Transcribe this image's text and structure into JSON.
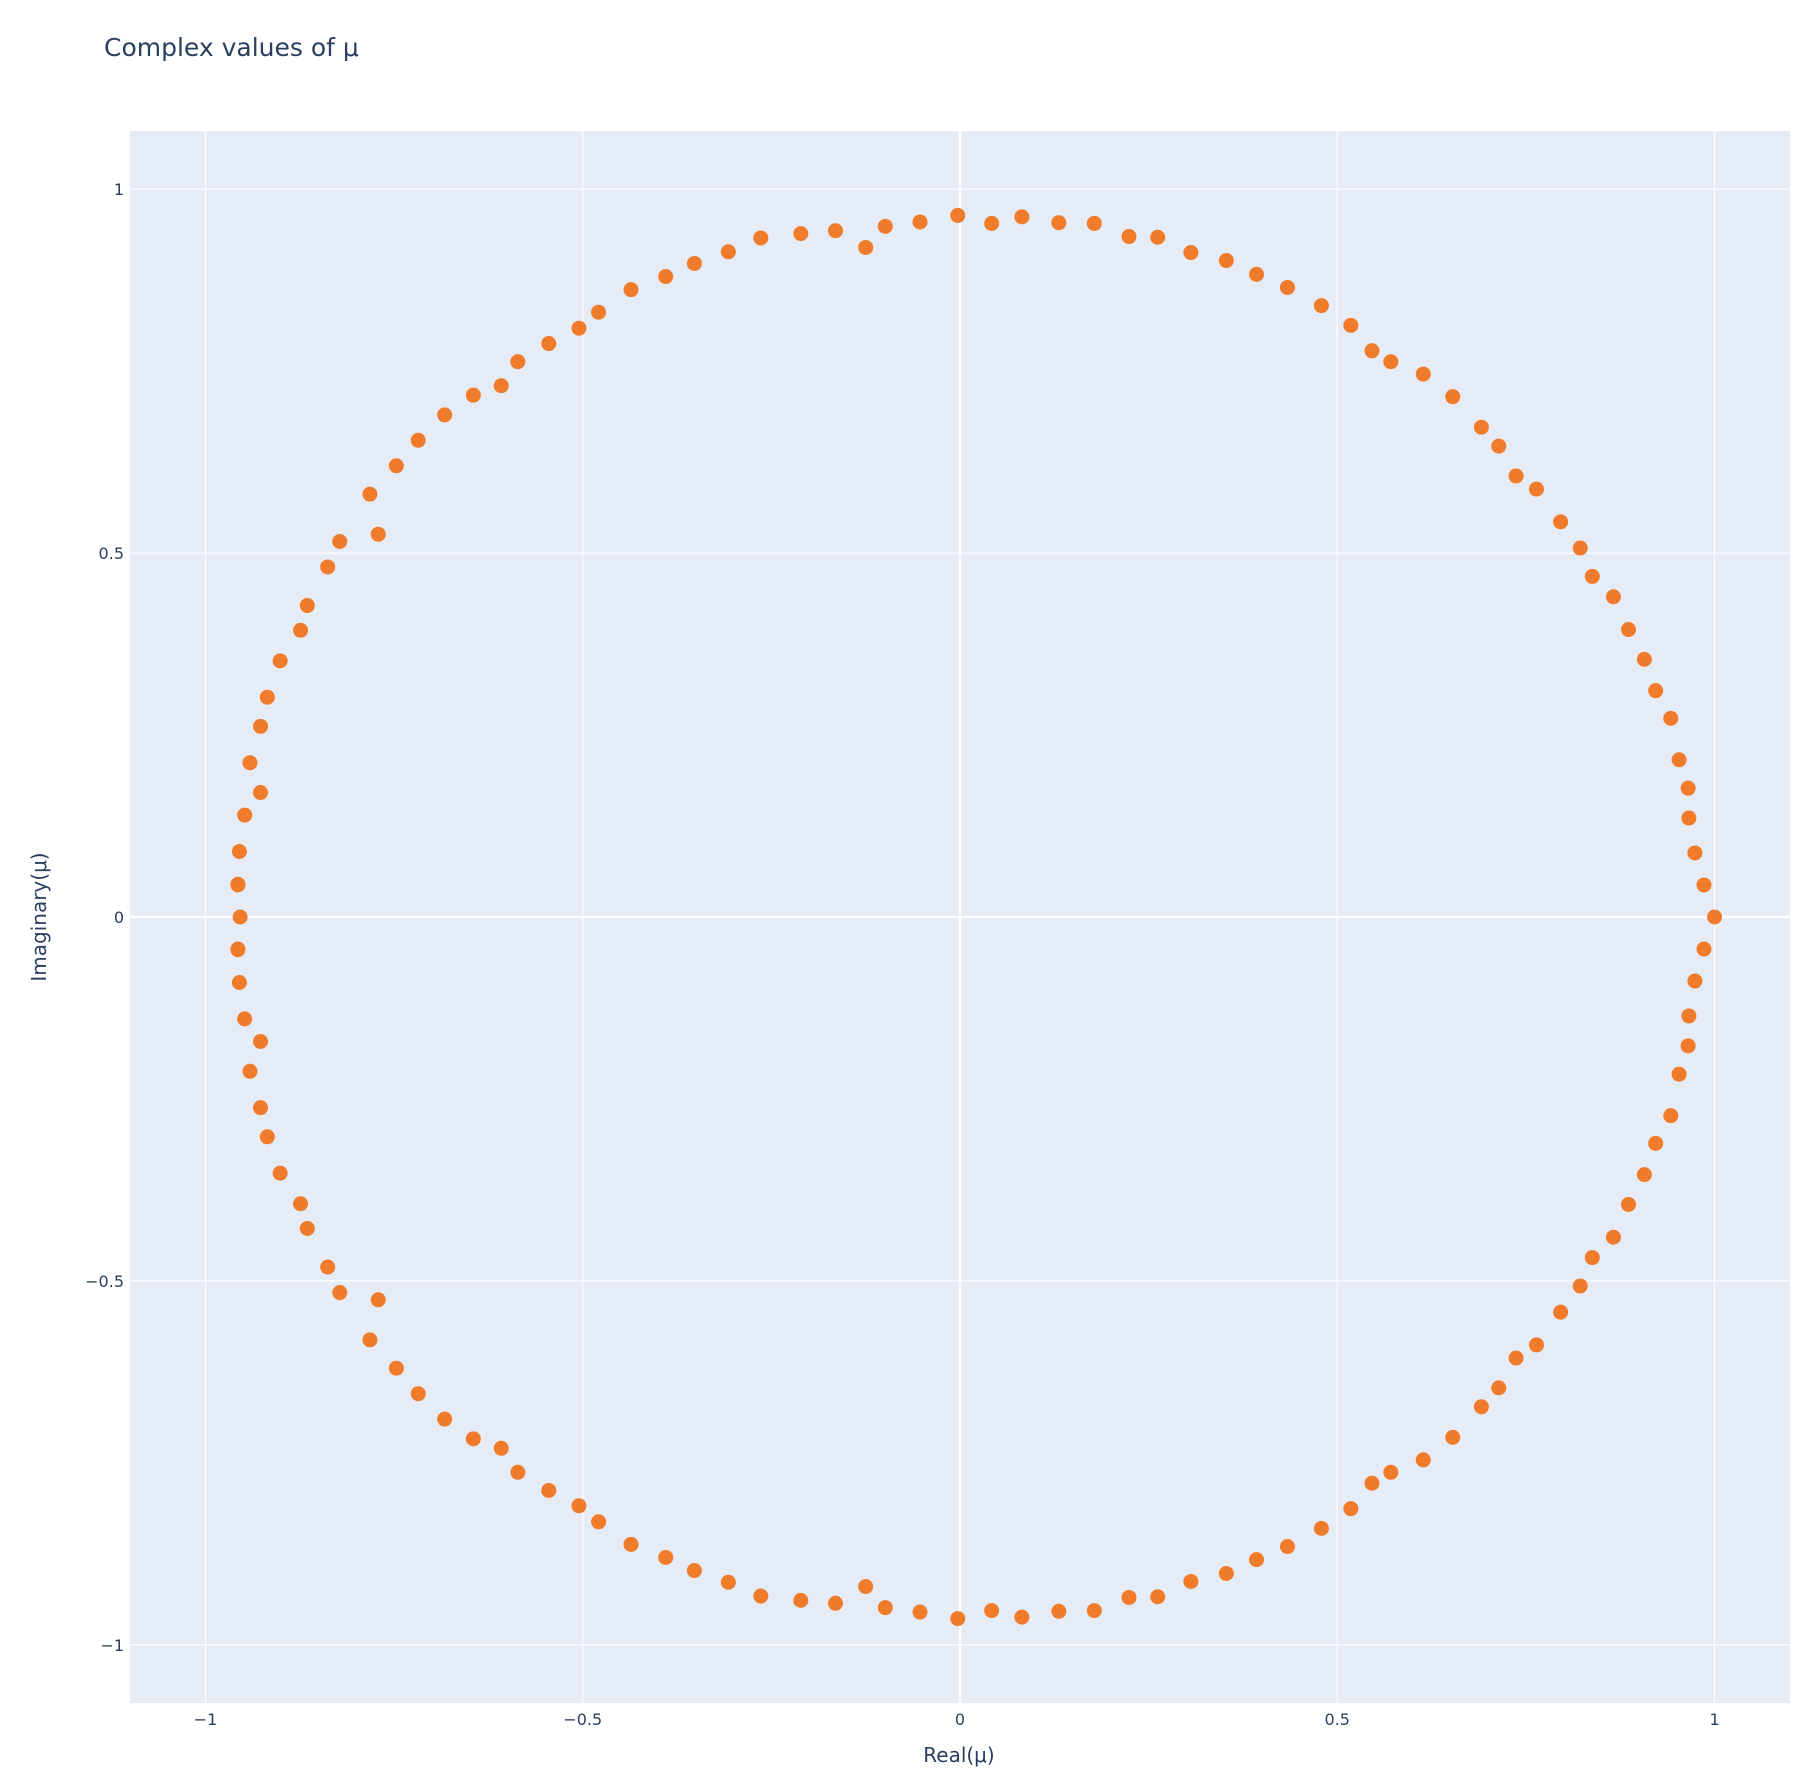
{
  "chart_data": {
    "type": "scatter",
    "title": "Complex values of μ",
    "xlabel": "Real(μ)",
    "ylabel": "Imaginary(μ)",
    "xlim": [
      -1.1,
      1.1
    ],
    "ylim": [
      -1.08,
      1.08
    ],
    "xticks": [
      -1,
      -0.5,
      0,
      0.5,
      1
    ],
    "yticks": [
      -1,
      -0.5,
      0,
      0.5,
      1
    ],
    "xtick_labels": [
      "−1",
      "−0.5",
      "0",
      "0.5",
      "1"
    ],
    "ytick_labels": [
      "−1",
      "−0.5",
      "0",
      "0.5",
      "1"
    ],
    "grid": true,
    "marker_color": "#ef7b2b",
    "plot_background": "#e5ecf6",
    "series": [
      {
        "x": [
          1.0,
          0.986,
          0.974,
          0.966,
          0.965,
          0.953,
          0.942,
          0.922,
          0.907,
          0.886,
          0.866,
          0.838,
          0.822,
          0.796,
          0.764,
          0.737,
          0.714,
          0.691,
          0.653,
          0.614,
          0.571,
          0.546,
          0.518,
          0.479,
          0.434,
          0.393,
          0.353,
          0.306,
          0.262,
          0.224,
          0.178,
          0.131,
          0.082,
          0.042,
          -0.003,
          -0.053,
          -0.099,
          -0.125,
          -0.165,
          -0.211,
          -0.264,
          -0.307,
          -0.352,
          -0.39,
          -0.436,
          -0.479,
          -0.505,
          -0.545,
          -0.586,
          -0.608,
          -0.645,
          -0.683,
          -0.718,
          -0.747,
          -0.782,
          -0.771,
          -0.822,
          -0.838,
          -0.865,
          -0.874,
          -0.901,
          -0.918,
          -0.927,
          -0.927,
          -0.941,
          -0.948,
          -0.955,
          -0.957,
          -0.954,
          -0.957
        ],
        "y": [
          0.0,
          0.044,
          0.088,
          0.136,
          0.177,
          0.216,
          0.273,
          0.311,
          0.354,
          0.395,
          0.44,
          0.468,
          0.507,
          0.543,
          0.588,
          0.606,
          0.647,
          0.673,
          0.715,
          0.746,
          0.763,
          0.778,
          0.813,
          0.84,
          0.865,
          0.883,
          0.902,
          0.913,
          0.934,
          0.935,
          0.953,
          0.954,
          0.962,
          0.953,
          0.964,
          0.955,
          0.949,
          0.92,
          0.943,
          0.939,
          0.933,
          0.914,
          0.898,
          0.88,
          0.862,
          0.831,
          0.809,
          0.788,
          0.763,
          0.73,
          0.717,
          0.69,
          0.655,
          0.62,
          0.581,
          0.526,
          0.516,
          0.481,
          0.428,
          0.394,
          0.352,
          0.302,
          0.262,
          0.171,
          0.212,
          0.14,
          0.09,
          0.045,
          0.0,
          -0.044
        ]
      }
    ]
  }
}
